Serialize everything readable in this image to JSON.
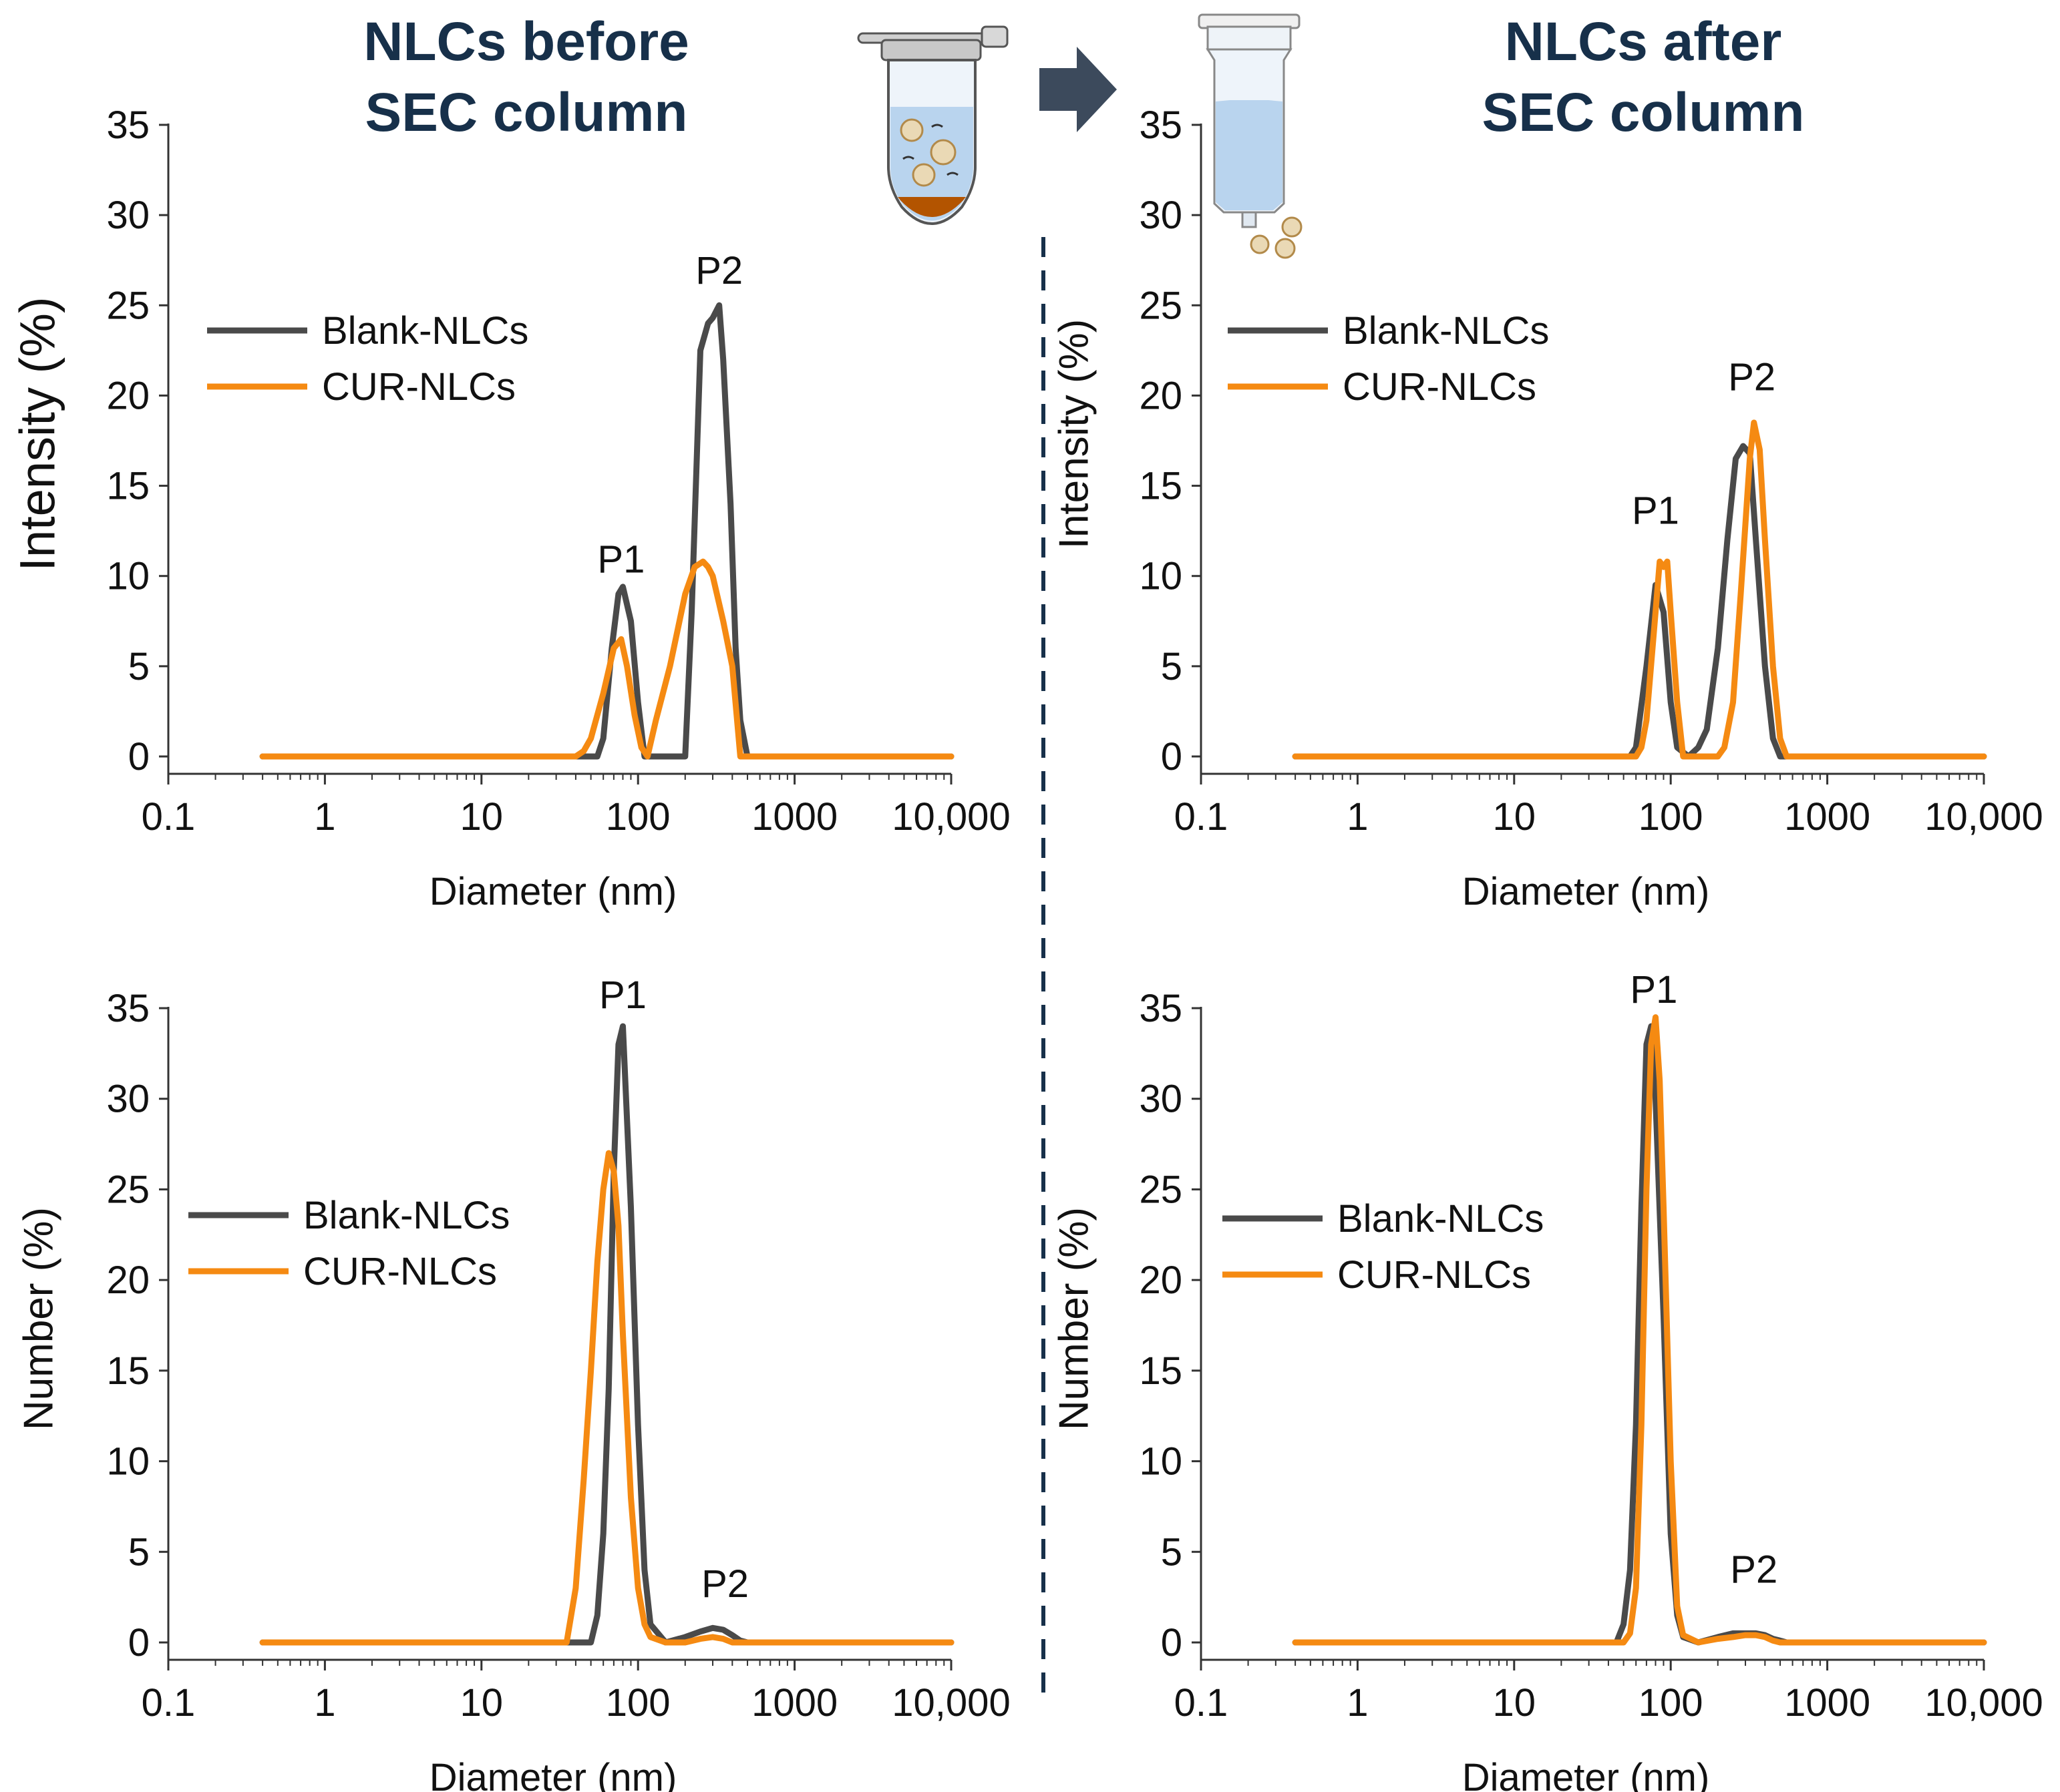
{
  "colors": {
    "blank": "#4a4a4a",
    "cur": "#f58a12",
    "heading": "#17304a",
    "divider": "#17304a",
    "arrow": "#3c4a5c"
  },
  "icons": [
    "microtube-icon",
    "arrow-right-icon",
    "sec-column-icon"
  ],
  "headings": {
    "before": {
      "line1": "NLCs before",
      "line2": "SEC column"
    },
    "after": {
      "line1": "NLCs after",
      "line2": "SEC column"
    }
  },
  "chart_data": [
    {
      "id": "before-intensity",
      "type": "line",
      "xscale": "log",
      "xlabel": "Diameter (nm)",
      "ylabel": "Intensity (%)",
      "xlim": [
        0.1,
        10000
      ],
      "ylim": [
        0,
        35
      ],
      "xticks": [
        "0.1",
        "1",
        "10",
        "100",
        "1000",
        "10,000"
      ],
      "yticks": [
        "0",
        "5",
        "10",
        "15",
        "20",
        "25",
        "30",
        "35"
      ],
      "legend": {
        "position": "top-left"
      },
      "series": [
        {
          "name": "Blank-NLCs",
          "color": "#4a4a4a",
          "x": [
            0.4,
            55,
            60,
            68,
            75,
            80,
            90,
            100,
            110,
            150,
            200,
            220,
            250,
            280,
            300,
            330,
            350,
            390,
            420,
            450,
            500,
            550,
            10000
          ],
          "y": [
            0,
            0,
            1,
            6,
            9,
            9.4,
            7.5,
            3,
            0,
            0,
            0,
            8,
            22.5,
            24,
            24.3,
            25,
            22,
            14,
            6,
            2,
            0,
            0,
            0
          ]
        },
        {
          "name": "CUR-NLCs",
          "color": "#f58a12",
          "x": [
            0.4,
            40,
            45,
            50,
            60,
            70,
            78,
            85,
            95,
            105,
            115,
            130,
            160,
            200,
            230,
            260,
            280,
            300,
            350,
            400,
            450,
            10000
          ],
          "y": [
            0,
            0,
            0.3,
            1,
            3.5,
            6,
            6.5,
            5,
            2.3,
            0.5,
            0,
            2,
            5,
            9,
            10.5,
            10.8,
            10.5,
            10,
            7.5,
            5,
            0,
            0
          ]
        }
      ],
      "annotations": [
        {
          "text": "P1",
          "x": 78,
          "y": 10.2
        },
        {
          "text": "P2",
          "x": 330,
          "y": 26.2
        }
      ]
    },
    {
      "id": "after-intensity",
      "type": "line",
      "xscale": "log",
      "xlabel": "Diameter (nm)",
      "ylabel": "Intensity (%)",
      "xlim": [
        0.1,
        10000
      ],
      "ylim": [
        0,
        35
      ],
      "xticks": [
        "0.1",
        "1",
        "10",
        "100",
        "1000",
        "10,000"
      ],
      "yticks": [
        "0",
        "5",
        "10",
        "15",
        "20",
        "25",
        "30",
        "35"
      ],
      "legend": {
        "position": "top-left"
      },
      "series": [
        {
          "name": "Blank-NLCs",
          "color": "#4a4a4a",
          "x": [
            0.4,
            55,
            60,
            70,
            80,
            90,
            100,
            110,
            130,
            150,
            170,
            200,
            230,
            260,
            290,
            320,
            350,
            400,
            450,
            500,
            550,
            10000
          ],
          "y": [
            0,
            0,
            0.5,
            5,
            9.5,
            8,
            3,
            0.5,
            0,
            0.5,
            1.5,
            6,
            12,
            16.5,
            17.2,
            16.8,
            12,
            5,
            1,
            0,
            0,
            0
          ]
        },
        {
          "name": "CUR-NLCs",
          "color": "#f58a12",
          "x": [
            0.4,
            60,
            65,
            70,
            80,
            85,
            90,
            95,
            100,
            110,
            120,
            200,
            220,
            250,
            280,
            320,
            340,
            370,
            400,
            450,
            500,
            550,
            600,
            10000
          ],
          "y": [
            0,
            0,
            0.5,
            2,
            8,
            10.8,
            10.5,
            10.8,
            8,
            3,
            0,
            0,
            0.5,
            3,
            9,
            16.5,
            18.5,
            17,
            12,
            5,
            1,
            0,
            0,
            0
          ]
        }
      ],
      "annotations": [
        {
          "text": "P1",
          "x": 80,
          "y": 12.9
        },
        {
          "text": "P2",
          "x": 330,
          "y": 20.3
        }
      ]
    },
    {
      "id": "before-number",
      "type": "line",
      "xscale": "log",
      "xlabel": "Diameter (nm)",
      "ylabel": "Number (%)",
      "xlim": [
        0.1,
        10000
      ],
      "ylim": [
        0,
        35
      ],
      "xticks": [
        "0.1",
        "1",
        "10",
        "100",
        "1000",
        "10,000"
      ],
      "yticks": [
        "0",
        "5",
        "10",
        "15",
        "20",
        "25",
        "30",
        "35"
      ],
      "legend": {
        "position": "center-left"
      },
      "series": [
        {
          "name": "Blank-NLCs",
          "color": "#4a4a4a",
          "x": [
            0.4,
            45,
            50,
            55,
            60,
            65,
            70,
            75,
            80,
            90,
            100,
            110,
            120,
            150,
            200,
            250,
            300,
            350,
            400,
            450,
            500,
            10000
          ],
          "y": [
            0,
            0,
            0,
            1.5,
            6,
            14,
            26,
            33,
            34,
            24,
            12,
            4,
            1,
            0,
            0.3,
            0.6,
            0.8,
            0.7,
            0.4,
            0.1,
            0,
            0
          ]
        },
        {
          "name": "CUR-NLCs",
          "color": "#f58a12",
          "x": [
            0.4,
            35,
            40,
            45,
            50,
            55,
            60,
            65,
            70,
            75,
            80,
            90,
            100,
            110,
            120,
            150,
            200,
            250,
            300,
            350,
            400,
            10000
          ],
          "y": [
            0,
            0,
            3,
            9,
            15,
            21,
            25,
            27,
            26,
            23,
            17,
            8,
            3,
            1,
            0.3,
            0,
            0,
            0.2,
            0.3,
            0.2,
            0,
            0
          ]
        }
      ],
      "annotations": [
        {
          "text": "P1",
          "x": 80,
          "y": 35
        },
        {
          "text": "P2",
          "x": 360,
          "y": 2.5
        }
      ]
    },
    {
      "id": "after-number",
      "type": "line",
      "xscale": "log",
      "xlabel": "Diameter (nm)",
      "ylabel": "Number (%)",
      "xlim": [
        0.1,
        10000
      ],
      "ylim": [
        0,
        35
      ],
      "xticks": [
        "0.1",
        "1",
        "10",
        "100",
        "1000",
        "10,000"
      ],
      "yticks": [
        "0",
        "5",
        "10",
        "15",
        "20",
        "25",
        "30",
        "35"
      ],
      "legend": {
        "position": "center-left"
      },
      "series": [
        {
          "name": "Blank-NLCs",
          "color": "#4a4a4a",
          "x": [
            0.4,
            45,
            50,
            55,
            60,
            65,
            70,
            75,
            80,
            90,
            100,
            110,
            120,
            150,
            200,
            250,
            300,
            350,
            400,
            450,
            500,
            550,
            10000
          ],
          "y": [
            0,
            0,
            1,
            4,
            12,
            24,
            33,
            34,
            30,
            18,
            6,
            1.5,
            0.3,
            0,
            0.3,
            0.5,
            0.5,
            0.5,
            0.4,
            0.2,
            0.1,
            0,
            0
          ]
        },
        {
          "name": "CUR-NLCs",
          "color": "#f58a12",
          "x": [
            0.4,
            50,
            55,
            60,
            65,
            70,
            75,
            80,
            85,
            90,
            100,
            110,
            120,
            150,
            200,
            250,
            300,
            350,
            400,
            450,
            500,
            10000
          ],
          "y": [
            0,
            0,
            0.5,
            3,
            12,
            25,
            33,
            34.5,
            31,
            24,
            10,
            2,
            0.4,
            0,
            0.2,
            0.3,
            0.4,
            0.4,
            0.3,
            0.1,
            0,
            0
          ]
        }
      ],
      "annotations": [
        {
          "text": "P1",
          "x": 78,
          "y": 35.3
        },
        {
          "text": "P2",
          "x": 340,
          "y": 3.3
        }
      ]
    }
  ]
}
